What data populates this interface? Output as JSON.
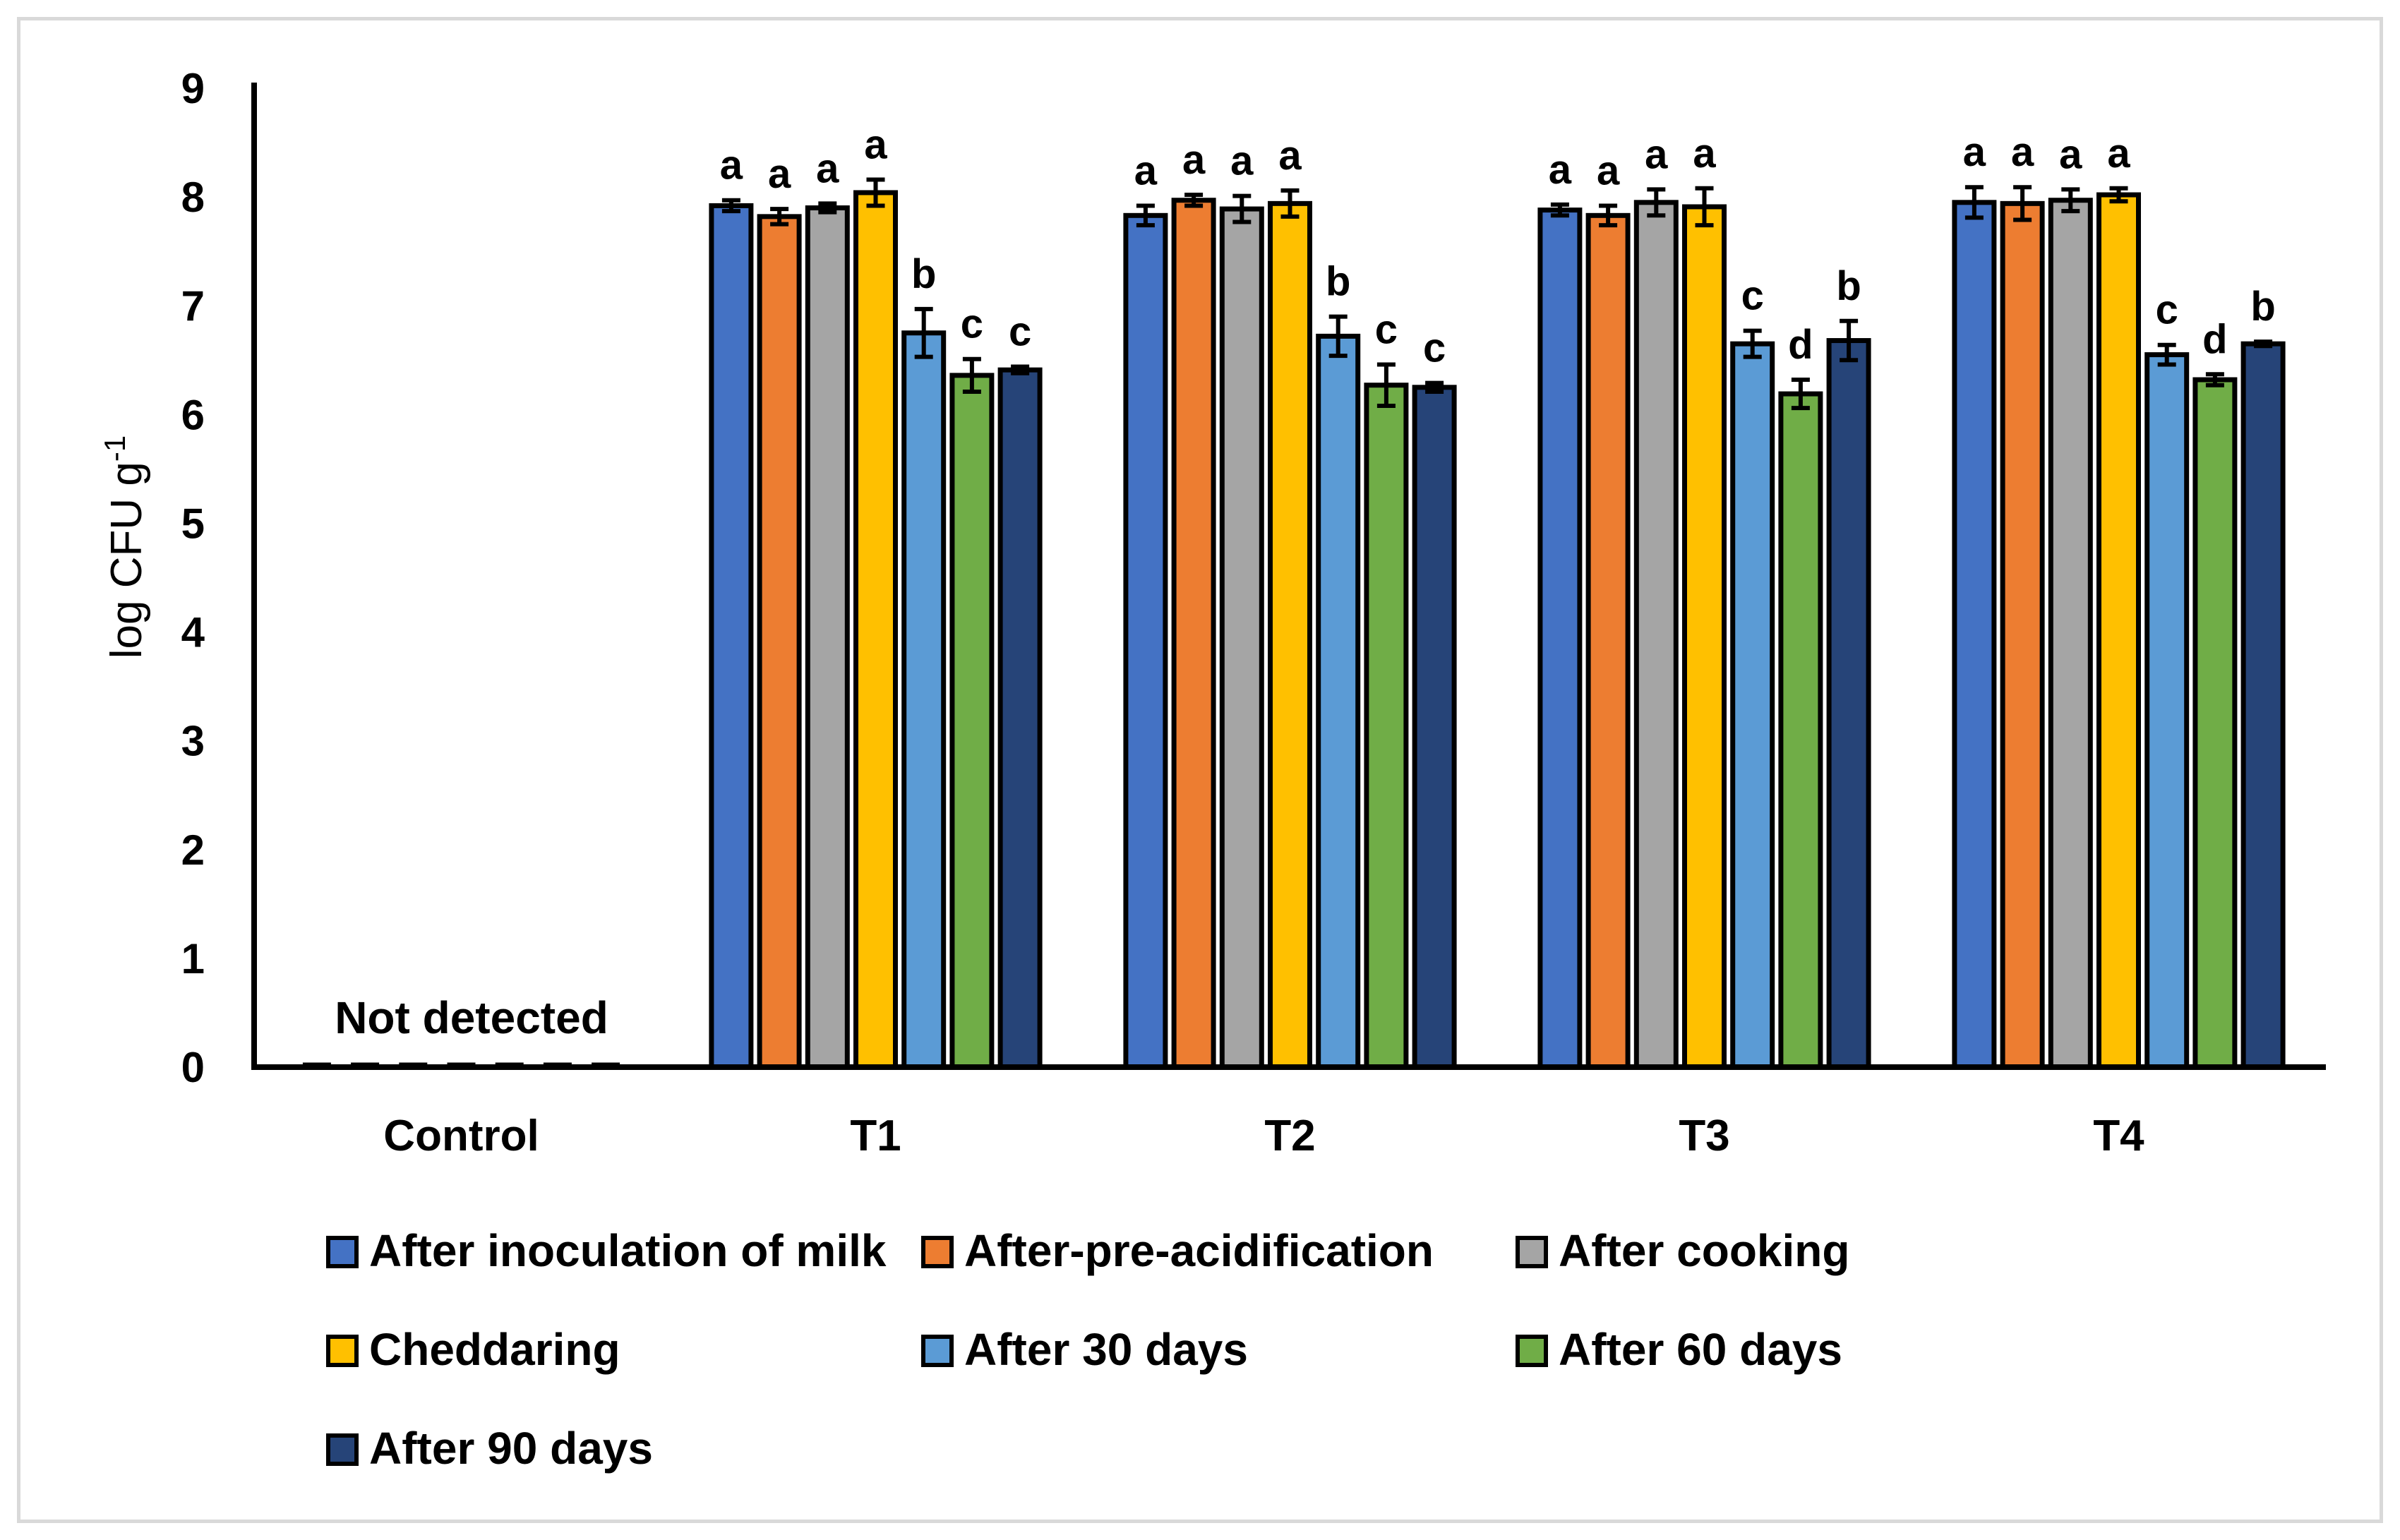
{
  "chart_data": {
    "type": "bar",
    "ylabel": "log CFU g",
    "ylabel_sup": "-1",
    "ylim": [
      0,
      9
    ],
    "yticks": [
      "0",
      "1",
      "2",
      "3",
      "4",
      "5",
      "6",
      "7",
      "8",
      "9"
    ],
    "grid": false,
    "legend_position": "bottom",
    "categories": [
      "Control",
      "T1",
      "T2",
      "T3",
      "T4"
    ],
    "annotation": "Not detected",
    "series": [
      {
        "name": "After inoculation of milk",
        "color": "#4472c4",
        "values": [
          0,
          7.92,
          7.83,
          7.88,
          7.95
        ],
        "errors": [
          0,
          0.05,
          0.09,
          0.05,
          0.14
        ],
        "letters": [
          "",
          "a",
          "a",
          "a",
          "a"
        ]
      },
      {
        "name": "After-pre-acidification",
        "color": "#ed7d31",
        "values": [
          0,
          7.82,
          7.97,
          7.83,
          7.94
        ],
        "errors": [
          0,
          0.07,
          0.05,
          0.09,
          0.15
        ],
        "letters": [
          "",
          "a",
          "a",
          "a",
          "a"
        ]
      },
      {
        "name": "After cooking",
        "color": "#a5a5a5",
        "values": [
          0,
          7.9,
          7.89,
          7.95,
          7.97
        ],
        "errors": [
          0,
          0.04,
          0.12,
          0.12,
          0.1
        ],
        "letters": [
          "",
          "a",
          "a",
          "a",
          "a"
        ]
      },
      {
        "name": "Cheddaring",
        "color": "#ffc000",
        "values": [
          0,
          8.04,
          7.94,
          7.91,
          8.02
        ],
        "errors": [
          0,
          0.12,
          0.12,
          0.17,
          0.06
        ],
        "letters": [
          "",
          "a",
          "a",
          "a",
          "a"
        ]
      },
      {
        "name": "After 30 days",
        "color": "#5b9bd5",
        "values": [
          0,
          6.75,
          6.72,
          6.65,
          6.55
        ],
        "errors": [
          0,
          0.22,
          0.18,
          0.12,
          0.09
        ],
        "letters": [
          "",
          "b",
          "b",
          "c",
          "c"
        ]
      },
      {
        "name": "After 60 days",
        "color": "#70ad47",
        "values": [
          0,
          6.36,
          6.27,
          6.19,
          6.32
        ],
        "errors": [
          0,
          0.15,
          0.19,
          0.13,
          0.05
        ],
        "letters": [
          "",
          "c",
          "c",
          "d",
          "d"
        ]
      },
      {
        "name": "After 90 days",
        "color": "#264478",
        "values": [
          0,
          6.41,
          6.25,
          6.68,
          6.65
        ],
        "errors": [
          0,
          0.03,
          0.04,
          0.18,
          0.02
        ],
        "letters": [
          "",
          "c",
          "c",
          "b",
          "b"
        ]
      }
    ]
  }
}
